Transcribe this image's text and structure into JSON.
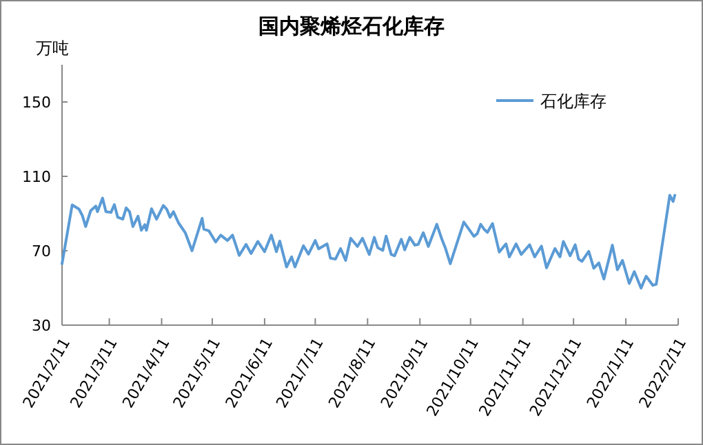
{
  "chart_data": {
    "type": "line",
    "title": "国内聚烯烃石化库存",
    "ylabel": "万吨",
    "legend": "top right",
    "marker": "none",
    "line_style": "solid",
    "grid": false,
    "x": [
      "2021-02-11",
      "2021-02-17",
      "2021-02-21",
      "2021-02-23",
      "2021-02-25",
      "2021-02-28",
      "2021-03-03",
      "2021-03-04",
      "2021-03-07",
      "2021-03-09",
      "2021-03-12",
      "2021-03-14",
      "2021-03-16",
      "2021-03-19",
      "2021-03-21",
      "2021-03-23",
      "2021-03-25",
      "2021-03-28",
      "2021-03-30",
      "2021-04-01",
      "2021-04-02",
      "2021-04-05",
      "2021-04-08",
      "2021-04-12",
      "2021-04-14",
      "2021-04-16",
      "2021-04-18",
      "2021-04-21",
      "2021-04-25",
      "2021-04-29",
      "2021-05-05",
      "2021-05-06",
      "2021-05-09",
      "2021-05-13",
      "2021-05-16",
      "2021-05-20",
      "2021-05-23",
      "2021-05-27",
      "2021-05-31",
      "2021-06-03",
      "2021-06-07",
      "2021-06-11",
      "2021-06-15",
      "2021-06-18",
      "2021-06-20",
      "2021-06-24",
      "2021-06-27",
      "2021-06-29",
      "2021-07-04",
      "2021-07-07",
      "2021-07-11",
      "2021-07-13",
      "2021-07-18",
      "2021-07-20",
      "2021-07-23",
      "2021-07-26",
      "2021-07-29",
      "2021-08-01",
      "2021-08-05",
      "2021-08-08",
      "2021-08-12",
      "2021-08-15",
      "2021-08-17",
      "2021-08-20",
      "2021-08-22",
      "2021-08-25",
      "2021-08-27",
      "2021-08-31",
      "2021-09-02",
      "2021-09-05",
      "2021-09-08",
      "2021-09-10",
      "2021-09-13",
      "2021-09-16",
      "2021-09-21",
      "2021-09-24",
      "2021-09-26",
      "2021-09-29",
      "2021-10-07",
      "2021-10-10",
      "2021-10-13",
      "2021-10-15",
      "2021-10-17",
      "2021-10-19",
      "2021-10-21",
      "2021-10-24",
      "2021-10-28",
      "2021-11-01",
      "2021-11-03",
      "2021-11-07",
      "2021-11-10",
      "2021-11-15",
      "2021-11-18",
      "2021-11-22",
      "2021-11-25",
      "2021-11-30",
      "2021-12-03",
      "2021-12-05",
      "2021-12-09",
      "2021-12-12",
      "2021-12-14",
      "2021-12-16",
      "2021-12-20",
      "2021-12-23",
      "2021-12-26",
      "2021-12-29",
      "2022-01-03",
      "2022-01-06",
      "2022-01-09",
      "2022-01-13",
      "2022-01-16",
      "2022-01-20",
      "2022-01-23",
      "2022-01-27",
      "2022-01-29",
      "2022-02-06",
      "2022-02-08",
      "2022-02-09"
    ],
    "series": [
      {
        "name": "石化库存",
        "color": "#5b9bd5",
        "values": [
          63,
          94.6,
          92.4,
          89,
          83,
          91.6,
          94,
          91,
          98.3,
          91,
          90.6,
          94.8,
          88,
          87,
          93,
          91,
          83,
          88.6,
          81,
          84,
          81,
          92.6,
          87,
          94.3,
          92.4,
          88,
          91,
          85,
          79.7,
          70,
          87.4,
          81.6,
          80.7,
          74.7,
          78.4,
          75.5,
          78.4,
          67.5,
          73.4,
          68.5,
          75,
          69.5,
          78.4,
          69.5,
          75.2,
          61.3,
          66.7,
          61.3,
          72.7,
          68.2,
          75.5,
          71,
          73.7,
          66,
          65.5,
          71.2,
          64.8,
          76.7,
          72.3,
          76.7,
          68,
          77.2,
          71.7,
          70.2,
          77.9,
          68,
          67.3,
          76.2,
          70.5,
          77.2,
          73,
          73.4,
          79.7,
          72.3,
          84.2,
          76.2,
          71.7,
          63,
          85.4,
          81.6,
          77.7,
          79.2,
          84.2,
          81.6,
          79.9,
          84.6,
          69.3,
          73.7,
          66.7,
          73.7,
          68,
          73.2,
          66.7,
          72.5,
          60.8,
          71.2,
          66.7,
          75,
          67.3,
          73.2,
          65.5,
          64.3,
          69.7,
          60.6,
          63.5,
          54.8,
          73,
          59.8,
          64.8,
          52.4,
          58.8,
          49.9,
          56.3,
          51.4,
          52,
          99.8,
          96.5,
          99.8
        ]
      }
    ],
    "xlim": [
      "2021-02-11",
      "2022-02-11"
    ],
    "xticks": [
      {
        "value": "2021-02-11",
        "label": "2021/2/11"
      },
      {
        "value": "2021-03-11",
        "label": "2021/3/11"
      },
      {
        "value": "2021-04-11",
        "label": "2021/4/11"
      },
      {
        "value": "2021-05-11",
        "label": "2021/5/11"
      },
      {
        "value": "2021-06-11",
        "label": "2021/6/11"
      },
      {
        "value": "2021-07-11",
        "label": "2021/7/11"
      },
      {
        "value": "2021-08-11",
        "label": "2021/8/11"
      },
      {
        "value": "2021-09-11",
        "label": "2021/9/11"
      },
      {
        "value": "2021-10-11",
        "label": "2021/10/11"
      },
      {
        "value": "2021-11-11",
        "label": "2021/11/11"
      },
      {
        "value": "2021-12-11",
        "label": "2021/12/11"
      },
      {
        "value": "2022-01-11",
        "label": "2022/1/11"
      },
      {
        "value": "2022-02-11",
        "label": "2022/2/11"
      }
    ],
    "ylim": [
      30,
      170
    ],
    "yticks": [
      30,
      70,
      110,
      150
    ]
  }
}
